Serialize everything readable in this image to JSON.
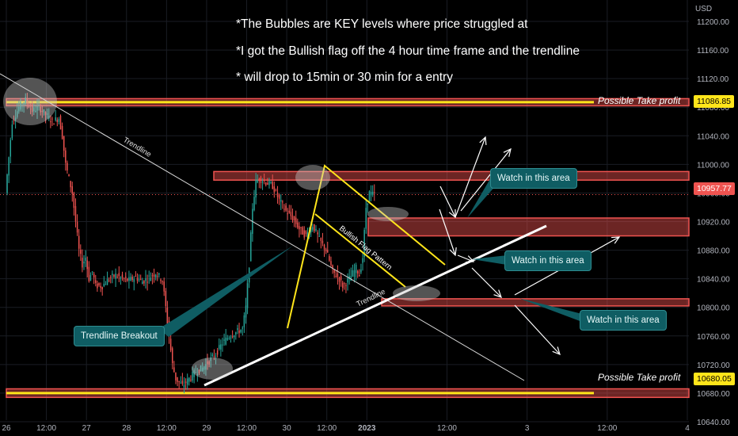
{
  "currency": "USD",
  "annotations": [
    "*The Bubbles are KEY levels where price struggled at",
    "*I got the Bullish flag off the 4 hour time frame and the trendline",
    "* will drop to 15min or 30 min for a entry"
  ],
  "callouts": {
    "watch1": "Watch in this area",
    "watch2": "Watch in this area",
    "watch3": "Watch in this area",
    "breakout": "Trendline Breakout"
  },
  "line_labels": {
    "trendline_upper": "Trendline",
    "trendline_lower": "Trendline",
    "flag": "Bullish Flag Pattern"
  },
  "take_profit": {
    "upper_label": "Possible Take profit",
    "upper_price": "11086.85",
    "lower_label": "Possible Take profit",
    "lower_price": "10680.05"
  },
  "current_price": "10957.77",
  "colors": {
    "up": "#26a69a",
    "down": "#ef5350",
    "zone": "#ef5350",
    "yellow": "#ffe51a",
    "callout": "#0f5d63"
  },
  "chart_data": {
    "type": "candlestick",
    "ylim": [
      10620,
      11230
    ],
    "y_ticks": [
      11200,
      11160,
      11120,
      11080,
      11040,
      11000,
      10960,
      10920,
      10880,
      10840,
      10800,
      10760,
      10720,
      10680,
      10640
    ],
    "y_tick_labels": [
      "11200.00",
      "11160.00",
      "11120.00",
      "11080.00",
      "11040.00",
      "11000.00",
      "10960.00",
      "10920.00",
      "10880.00",
      "10840.00",
      "10800.00",
      "10760.00",
      "10720.00",
      "10680.00",
      "10640.00"
    ],
    "x_range_hours": [
      0,
      204
    ],
    "x_ticks": [
      {
        "hour": 0,
        "label": "26"
      },
      {
        "hour": 12,
        "label": "12:00"
      },
      {
        "hour": 24,
        "label": "27"
      },
      {
        "hour": 36,
        "label": "28"
      },
      {
        "hour": 48,
        "label": "12:00"
      },
      {
        "hour": 60,
        "label": "29"
      },
      {
        "hour": 72,
        "label": "12:00"
      },
      {
        "hour": 84,
        "label": "30"
      },
      {
        "hour": 96,
        "label": "12:00"
      },
      {
        "hour": 108,
        "label": "2023"
      },
      {
        "hour": 132,
        "label": "12:00"
      },
      {
        "hour": 156,
        "label": "3"
      },
      {
        "hour": 180,
        "label": "12:00"
      },
      {
        "hour": 204,
        "label": "4"
      }
    ],
    "price_path": [
      [
        0,
        10960
      ],
      [
        2,
        11060
      ],
      [
        4,
        11080
      ],
      [
        6,
        11090
      ],
      [
        8,
        11075
      ],
      [
        10,
        11080
      ],
      [
        12,
        11070
      ],
      [
        14,
        11060
      ],
      [
        16,
        11065
      ],
      [
        17,
        11040
      ],
      [
        18,
        11000
      ],
      [
        20,
        10960
      ],
      [
        21,
        10920
      ],
      [
        22,
        10880
      ],
      [
        23,
        10860
      ],
      [
        24,
        10870
      ],
      [
        25,
        10840
      ],
      [
        26,
        10850
      ],
      [
        27,
        10830
      ],
      [
        29,
        10830
      ],
      [
        31,
        10840
      ],
      [
        33,
        10845
      ],
      [
        35,
        10840
      ],
      [
        37,
        10838
      ],
      [
        39,
        10842
      ],
      [
        41,
        10836
      ],
      [
        43,
        10842
      ],
      [
        45,
        10848
      ],
      [
        47,
        10838
      ],
      [
        48,
        10800
      ],
      [
        49,
        10760
      ],
      [
        50,
        10720
      ],
      [
        51,
        10700
      ],
      [
        53,
        10690
      ],
      [
        55,
        10700
      ],
      [
        57,
        10710
      ],
      [
        59,
        10715
      ],
      [
        61,
        10725
      ],
      [
        63,
        10735
      ],
      [
        65,
        10750
      ],
      [
        67,
        10760
      ],
      [
        69,
        10765
      ],
      [
        71,
        10770
      ],
      [
        72,
        10800
      ],
      [
        73,
        10860
      ],
      [
        74,
        10940
      ],
      [
        75,
        10975
      ],
      [
        76,
        10980
      ],
      [
        78,
        10975
      ],
      [
        80,
        10970
      ],
      [
        82,
        10950
      ],
      [
        84,
        10935
      ],
      [
        86,
        10925
      ],
      [
        88,
        10910
      ],
      [
        90,
        10900
      ],
      [
        92,
        10915
      ],
      [
        94,
        10895
      ],
      [
        96,
        10880
      ],
      [
        98,
        10850
      ],
      [
        100,
        10840
      ],
      [
        101,
        10830
      ],
      [
        103,
        10840
      ],
      [
        105,
        10855
      ],
      [
        106,
        10845
      ],
      [
        107,
        10870
      ],
      [
        108,
        10940
      ],
      [
        109,
        10960
      ],
      [
        110,
        10958
      ]
    ],
    "zones": [
      {
        "name": "upper-take-profit",
        "low": 11082,
        "high": 11092
      },
      {
        "name": "upper-resistance",
        "low": 10978,
        "high": 10990
      },
      {
        "name": "mid-zone",
        "low": 10900,
        "high": 10925
      },
      {
        "name": "support-zone",
        "low": 10802,
        "high": 10812
      },
      {
        "name": "lower-take-profit",
        "low": 10674,
        "high": 10686
      }
    ]
  }
}
